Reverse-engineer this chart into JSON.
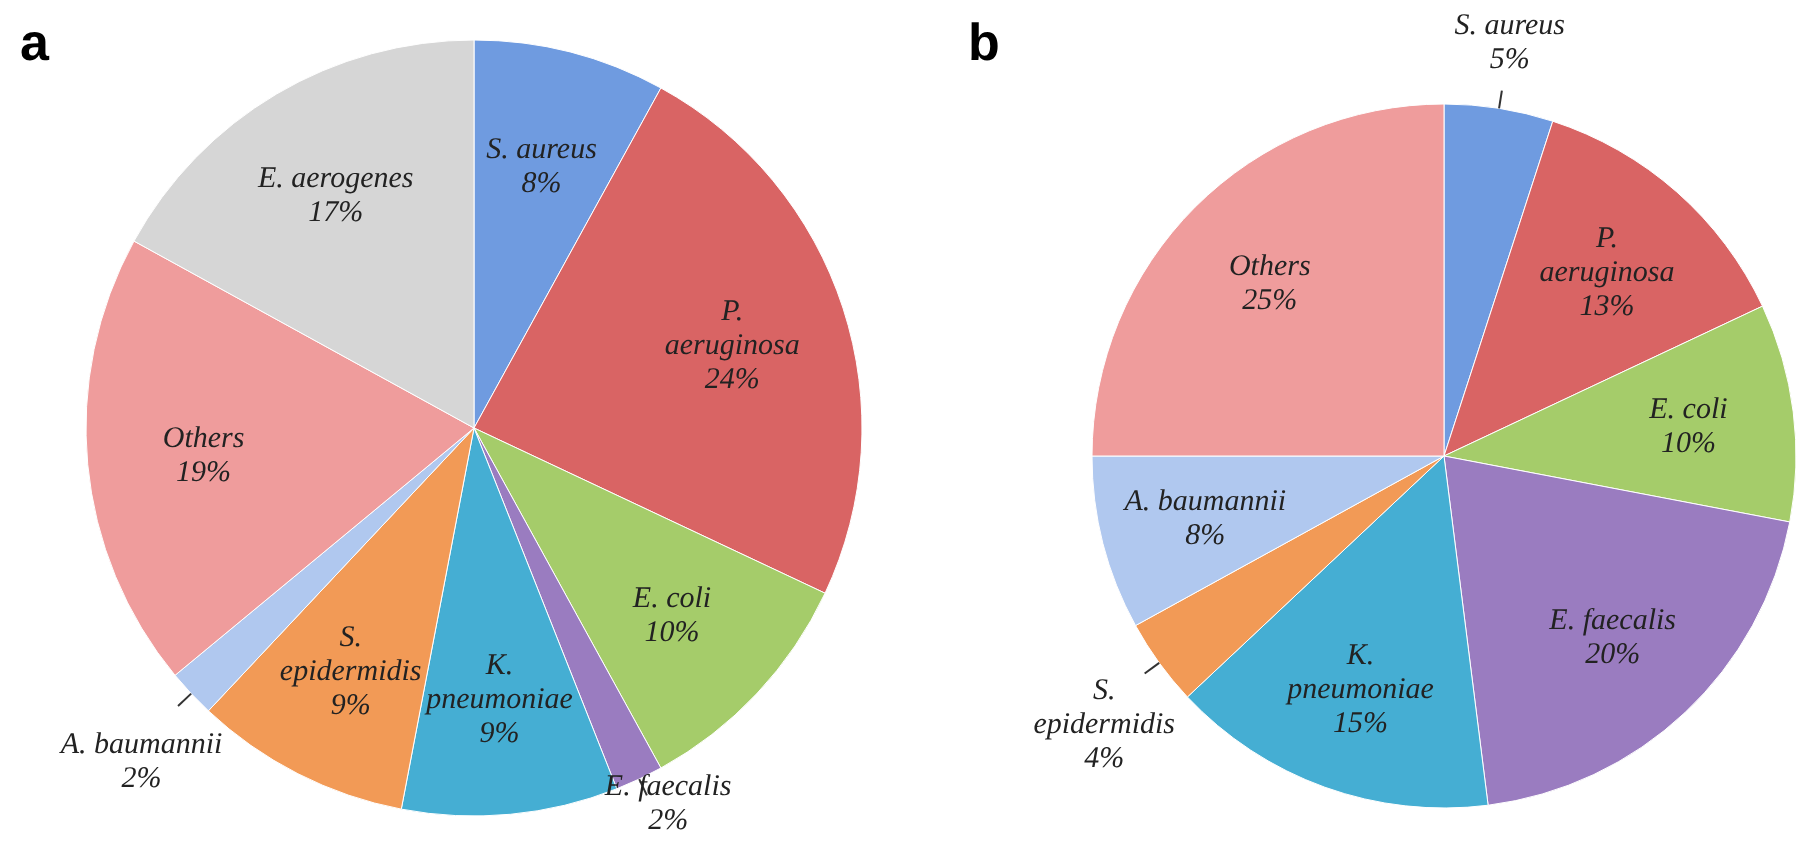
{
  "chart_data": [
    {
      "type": "pie",
      "title": "a",
      "categories": [
        "S. aureus",
        "P. aeruginosa",
        "E. coli",
        "E. faecalis",
        "K. pneumoniae",
        "S. epidermidis",
        "A. baumannii",
        "Others",
        "E. aerogenes"
      ],
      "values": [
        8,
        24,
        10,
        2,
        9,
        9,
        2,
        19,
        17
      ],
      "value_labels": [
        "8%",
        "24%",
        "10%",
        "2%",
        "9%",
        "9%",
        "2%",
        "19%",
        "17%"
      ],
      "colors": [
        "#6f9be0",
        "#d96464",
        "#a5cc6a",
        "#9a7cc0",
        "#45aed3",
        "#f29a56",
        "#b0c8ef",
        "#ef9c9c",
        "#d6d6d6"
      ]
    },
    {
      "type": "pie",
      "title": "b",
      "categories": [
        "S. aureus",
        "P. aeruginosa",
        "E. coli",
        "E. faecalis",
        "K. pneumoniae",
        "S. epidermidis",
        "A. baumannii",
        "Others"
      ],
      "values": [
        5,
        13,
        10,
        20,
        15,
        4,
        8,
        25
      ],
      "value_labels": [
        "5%",
        "13%",
        "10%",
        "20%",
        "15%",
        "4%",
        "8%",
        "25%"
      ],
      "colors": [
        "#6f9be0",
        "#d96464",
        "#a5cc6a",
        "#9a7cc0",
        "#45aed3",
        "#f29a56",
        "#b0c8ef",
        "#ef9c9c"
      ]
    }
  ]
}
